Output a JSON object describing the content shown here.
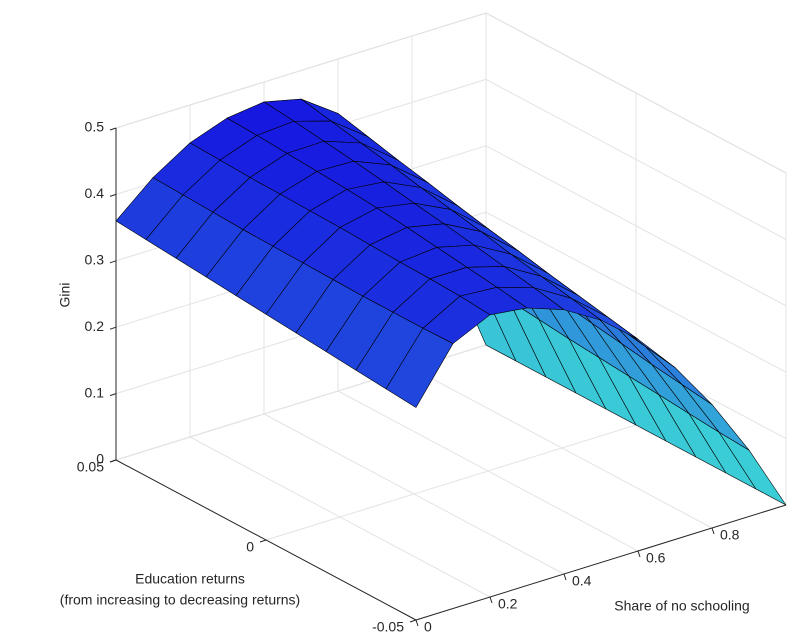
{
  "chart_data": {
    "type": "surface",
    "xlabel": "Share of no schooling",
    "ylabel": [
      "Education returns",
      "(from increasing to decreasing returns)"
    ],
    "zlabel": "Gini",
    "x": [
      0,
      0.1,
      0.2,
      0.3,
      0.4,
      0.5,
      0.6,
      0.7,
      0.8,
      0.9,
      1
    ],
    "y": [
      -0.05,
      -0.04,
      -0.03,
      -0.02,
      -0.01,
      0,
      0.01,
      0.02,
      0.03,
      0.04,
      0.05
    ],
    "z": [
      [
        0.32,
        0.399,
        0.425,
        0.418,
        0.398,
        0.365,
        0.319,
        0.259,
        0.186,
        0.1,
        0
      ],
      [
        0.324,
        0.398,
        0.429,
        0.425,
        0.407,
        0.374,
        0.328,
        0.267,
        0.192,
        0.103,
        0
      ],
      [
        0.328,
        0.398,
        0.431,
        0.431,
        0.415,
        0.383,
        0.337,
        0.275,
        0.198,
        0.107,
        0
      ],
      [
        0.332,
        0.398,
        0.432,
        0.437,
        0.423,
        0.392,
        0.346,
        0.283,
        0.205,
        0.111,
        0
      ],
      [
        0.336,
        0.399,
        0.434,
        0.443,
        0.431,
        0.402,
        0.356,
        0.292,
        0.212,
        0.115,
        0
      ],
      [
        0.34,
        0.4,
        0.436,
        0.448,
        0.438,
        0.411,
        0.365,
        0.301,
        0.219,
        0.119,
        0
      ],
      [
        0.344,
        0.401,
        0.437,
        0.452,
        0.446,
        0.42,
        0.375,
        0.311,
        0.227,
        0.123,
        0
      ],
      [
        0.348,
        0.402,
        0.438,
        0.455,
        0.453,
        0.43,
        0.386,
        0.321,
        0.235,
        0.128,
        0
      ],
      [
        0.352,
        0.404,
        0.439,
        0.458,
        0.459,
        0.439,
        0.396,
        0.331,
        0.243,
        0.133,
        0
      ],
      [
        0.356,
        0.406,
        0.441,
        0.461,
        0.465,
        0.448,
        0.407,
        0.342,
        0.252,
        0.138,
        0
      ],
      [
        0.36,
        0.408,
        0.443,
        0.463,
        0.47,
        0.457,
        0.418,
        0.353,
        0.261,
        0.144,
        0
      ]
    ],
    "xlim": [
      0,
      1
    ],
    "ylim": [
      -0.05,
      0.05
    ],
    "zlim": [
      0,
      0.5
    ],
    "xticks": [
      0,
      0.2,
      0.4,
      0.6,
      0.8
    ],
    "yticks": [
      -0.05,
      0,
      0.05
    ],
    "zticks": [
      0,
      0.1,
      0.2,
      0.3,
      0.4,
      0.5
    ],
    "colormap": [
      "#3fe3d6",
      "#1616e0"
    ],
    "edge_color": "#000000",
    "grid": true
  }
}
